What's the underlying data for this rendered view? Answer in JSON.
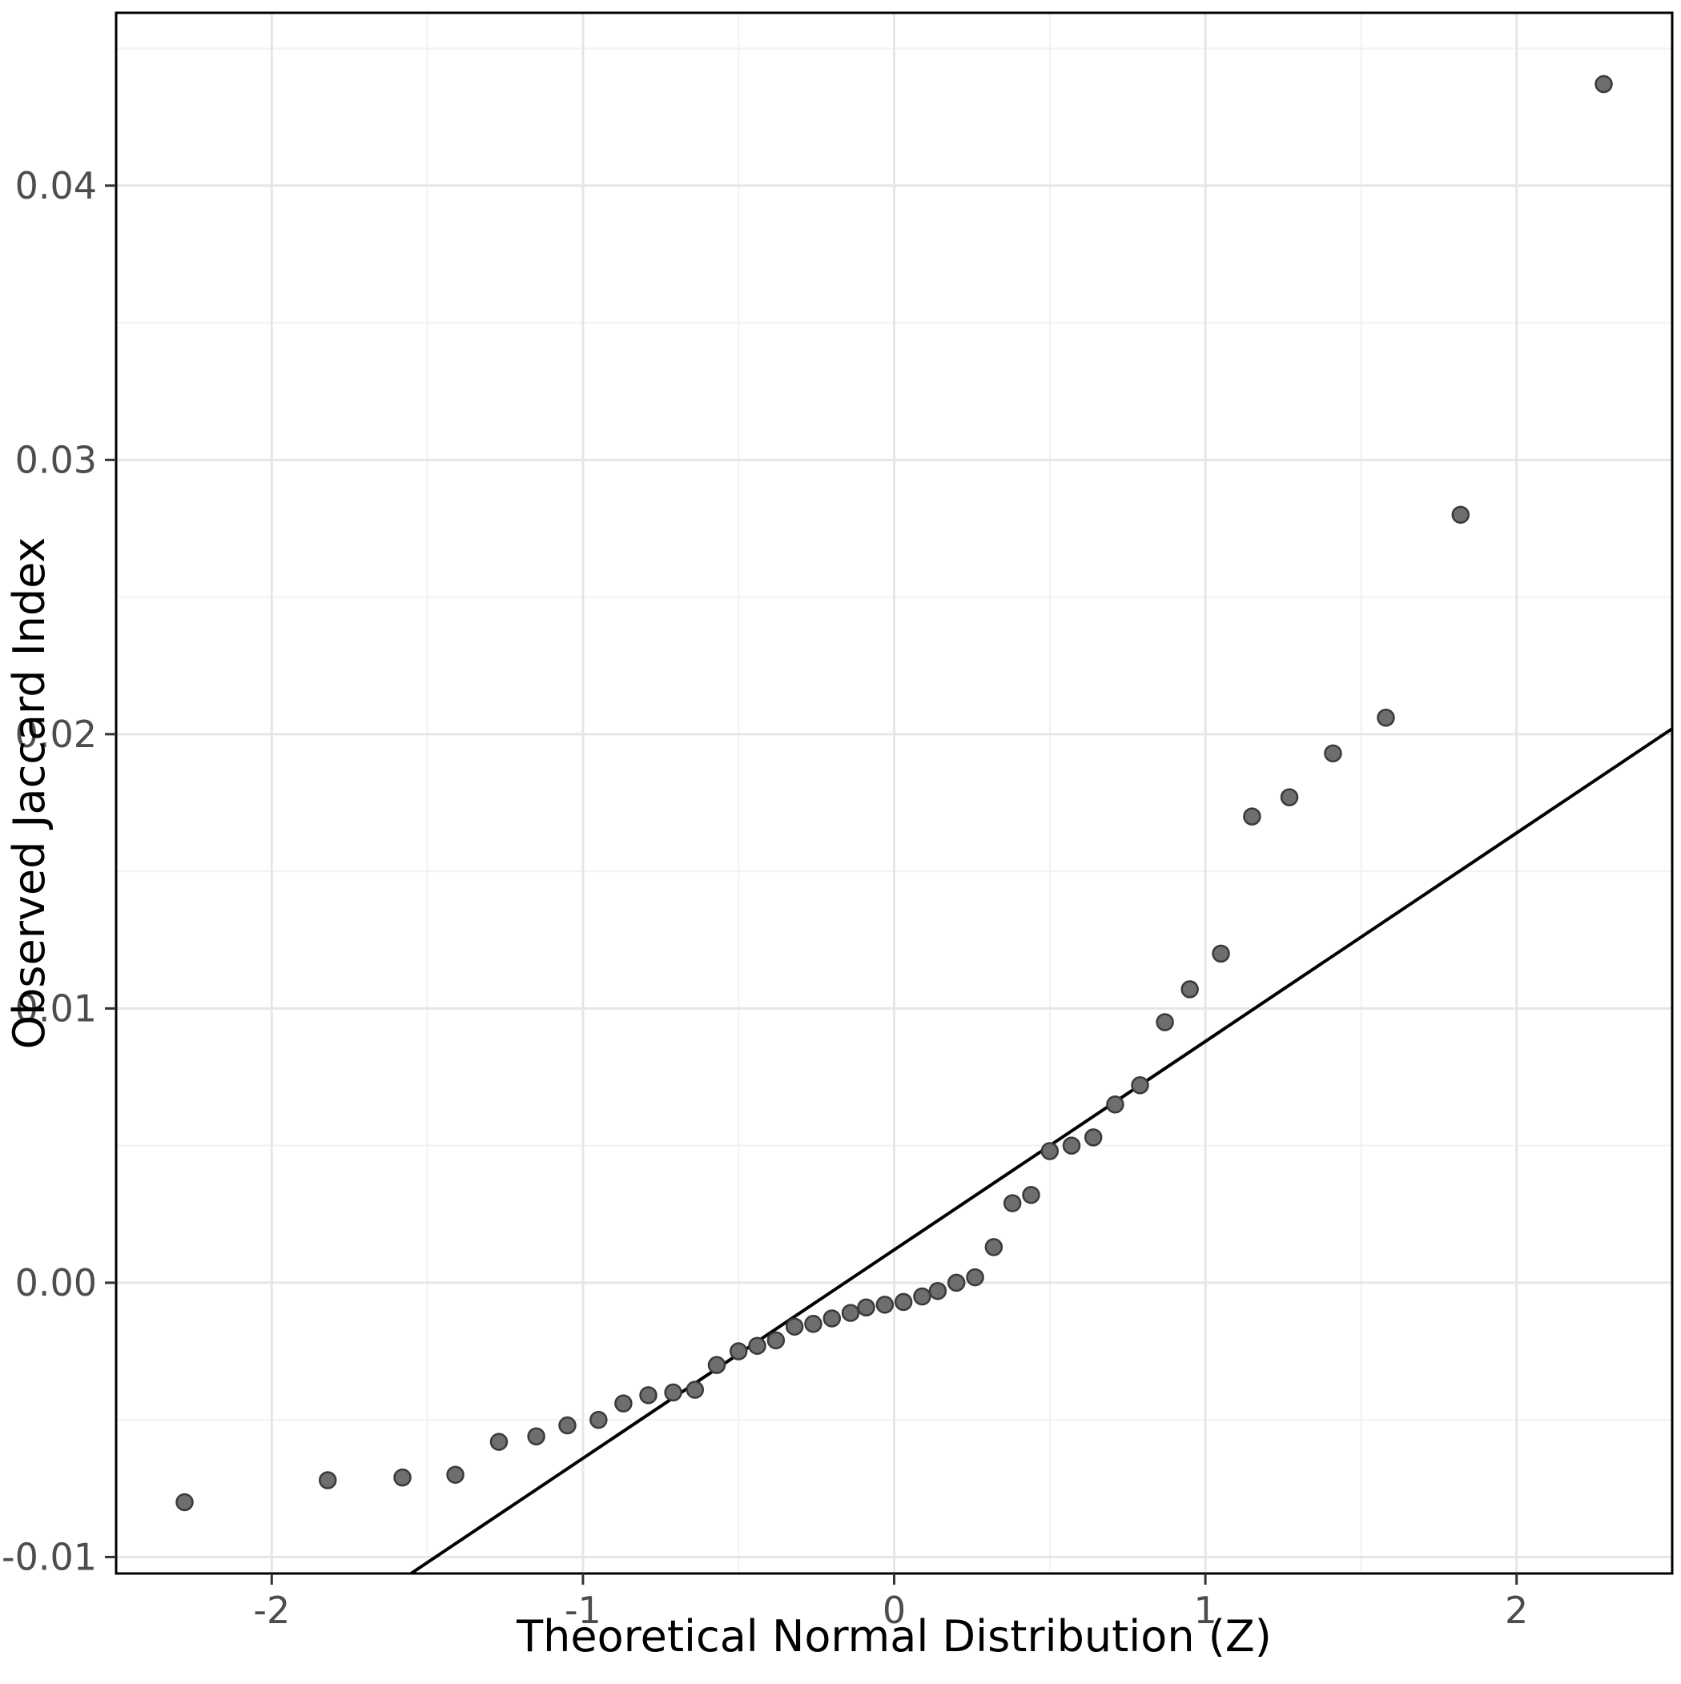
{
  "chart_data": {
    "type": "scatter",
    "title": "",
    "xlabel": "Theoretical Normal Distribution (Z)",
    "ylabel": "Observed Jaccard Index",
    "xlim": [
      -2.5,
      2.5
    ],
    "ylim": [
      -0.0106,
      0.0463
    ],
    "x_ticks": [
      -2,
      -1,
      0,
      1,
      2
    ],
    "x_tick_labels": [
      "-2",
      "-1",
      "0",
      "1",
      "2"
    ],
    "y_ticks": [
      -0.01,
      0.0,
      0.01,
      0.02,
      0.03,
      0.04
    ],
    "y_tick_labels": [
      "-0.01",
      "0.00",
      "0.01",
      "0.02",
      "0.03",
      "0.04"
    ],
    "x_minor_ticks": [
      -1.5,
      -0.5,
      0.5,
      1.5
    ],
    "y_minor_ticks": [
      -0.005,
      0.005,
      0.015,
      0.025,
      0.035,
      0.045
    ],
    "grid": true,
    "legend": "none",
    "reference_line": {
      "slope": 0.0076,
      "intercept": 0.0012
    },
    "points": [
      [
        -2.28,
        -0.008
      ],
      [
        -1.82,
        -0.0072
      ],
      [
        -1.58,
        -0.0071
      ],
      [
        -1.41,
        -0.007
      ],
      [
        -1.27,
        -0.0058
      ],
      [
        -1.15,
        -0.0056
      ],
      [
        -1.05,
        -0.0052
      ],
      [
        -0.95,
        -0.005
      ],
      [
        -0.87,
        -0.0044
      ],
      [
        -0.79,
        -0.0041
      ],
      [
        -0.71,
        -0.004
      ],
      [
        -0.64,
        -0.0039
      ],
      [
        -0.57,
        -0.003
      ],
      [
        -0.5,
        -0.0025
      ],
      [
        -0.44,
        -0.0023
      ],
      [
        -0.38,
        -0.0021
      ],
      [
        -0.32,
        -0.0016
      ],
      [
        -0.26,
        -0.0015
      ],
      [
        -0.2,
        -0.0013
      ],
      [
        -0.14,
        -0.0011
      ],
      [
        -0.09,
        -0.0009
      ],
      [
        -0.03,
        -0.0008
      ],
      [
        0.03,
        -0.0007
      ],
      [
        0.09,
        -0.0005
      ],
      [
        0.14,
        -0.0003
      ],
      [
        0.2,
        0.0
      ],
      [
        0.26,
        0.0002
      ],
      [
        0.32,
        0.0013
      ],
      [
        0.38,
        0.0029
      ],
      [
        0.44,
        0.0032
      ],
      [
        0.5,
        0.0048
      ],
      [
        0.57,
        0.005
      ],
      [
        0.64,
        0.0053
      ],
      [
        0.71,
        0.0065
      ],
      [
        0.79,
        0.0072
      ],
      [
        0.87,
        0.0095
      ],
      [
        0.95,
        0.0107
      ],
      [
        1.05,
        0.012
      ],
      [
        1.15,
        0.017
      ],
      [
        1.27,
        0.0177
      ],
      [
        1.41,
        0.0193
      ],
      [
        1.58,
        0.0206
      ],
      [
        1.82,
        0.028
      ],
      [
        2.28,
        0.0437
      ]
    ],
    "colors": {
      "background": "#ffffff",
      "panel_background": "#ffffff",
      "grid_major": "#e6e6e6",
      "grid_minor": "#f2f2f2",
      "panel_border": "#000000",
      "tick_mark": "#333333",
      "tick_label": "#4d4d4d",
      "axis_title": "#000000",
      "point_fill": "#6e6e6e",
      "point_stroke": "#3a3a3a",
      "reference_line": "#000000"
    }
  }
}
